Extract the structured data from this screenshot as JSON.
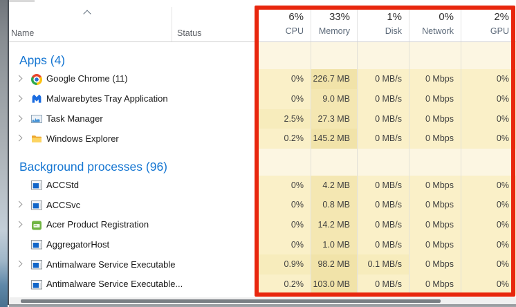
{
  "header": {
    "name_label": "Name",
    "status_label": "Status"
  },
  "columns": [
    {
      "key": "cpu",
      "total": "6%",
      "label": "CPU"
    },
    {
      "key": "memory",
      "total": "33%",
      "label": "Memory"
    },
    {
      "key": "disk",
      "total": "1%",
      "label": "Disk"
    },
    {
      "key": "network",
      "total": "0%",
      "label": "Network"
    },
    {
      "key": "gpu",
      "total": "2%",
      "label": "GPU"
    }
  ],
  "groups": [
    {
      "title": "Apps (4)",
      "rows": [
        {
          "name": "Google Chrome (11)",
          "icon": "chrome",
          "expandable": true,
          "values": [
            "0%",
            "226.7 MB",
            "0 MB/s",
            "0 Mbps",
            "0%"
          ],
          "heat": [
            1,
            4,
            1,
            1,
            1
          ]
        },
        {
          "name": "Malwarebytes Tray Application",
          "icon": "malwarebytes",
          "expandable": true,
          "values": [
            "0%",
            "9.0 MB",
            "0 MB/s",
            "0 Mbps",
            "0%"
          ],
          "heat": [
            1,
            3,
            1,
            1,
            1
          ]
        },
        {
          "name": "Task Manager",
          "icon": "taskmgr",
          "expandable": true,
          "values": [
            "2.5%",
            "27.3 MB",
            "0 MB/s",
            "0 Mbps",
            "0%"
          ],
          "heat": [
            2,
            3,
            1,
            1,
            1
          ]
        },
        {
          "name": "Windows Explorer",
          "icon": "folder",
          "expandable": true,
          "values": [
            "0.2%",
            "145.2 MB",
            "0 MB/s",
            "0 Mbps",
            "0%"
          ],
          "heat": [
            1,
            4,
            1,
            1,
            1
          ]
        }
      ]
    },
    {
      "title": "Background processes (96)",
      "rows": [
        {
          "name": "ACCStd",
          "icon": "window",
          "expandable": false,
          "values": [
            "0%",
            "4.2 MB",
            "0 MB/s",
            "0 Mbps",
            "0%"
          ],
          "heat": [
            1,
            3,
            1,
            1,
            1
          ]
        },
        {
          "name": "ACCSvc",
          "icon": "window",
          "expandable": true,
          "values": [
            "0%",
            "0.8 MB",
            "0 MB/s",
            "0 Mbps",
            "0%"
          ],
          "heat": [
            1,
            3,
            1,
            1,
            1
          ]
        },
        {
          "name": "Acer Product Registration",
          "icon": "acer",
          "expandable": true,
          "values": [
            "0%",
            "14.2 MB",
            "0 MB/s",
            "0 Mbps",
            "0%"
          ],
          "heat": [
            1,
            3,
            1,
            1,
            1
          ]
        },
        {
          "name": "AggregatorHost",
          "icon": "window",
          "expandable": false,
          "values": [
            "0%",
            "1.0 MB",
            "0 MB/s",
            "0 Mbps",
            "0%"
          ],
          "heat": [
            1,
            3,
            1,
            1,
            1
          ]
        },
        {
          "name": "Antimalware Service Executable",
          "icon": "window",
          "expandable": true,
          "values": [
            "0.9%",
            "98.2 MB",
            "0.1 MB/s",
            "0 Mbps",
            "0%"
          ],
          "heat": [
            2,
            4,
            2,
            1,
            1
          ]
        },
        {
          "name": "Antimalware Service Executable...",
          "icon": "window",
          "expandable": false,
          "values": [
            "0.2%",
            "103.0 MB",
            "0 MB/s",
            "0 Mbps",
            "0%"
          ],
          "heat": [
            1,
            4,
            1,
            1,
            1
          ]
        }
      ]
    }
  ],
  "colors": {
    "annotation": "#e8260d",
    "section_title": "#1576d2",
    "heat_0": "#fcf6e2",
    "heat_1": "#faf0c8",
    "heat_2": "#f7ecbc",
    "heat_3": "#f4e7b2",
    "heat_4": "#f1e3a9"
  }
}
